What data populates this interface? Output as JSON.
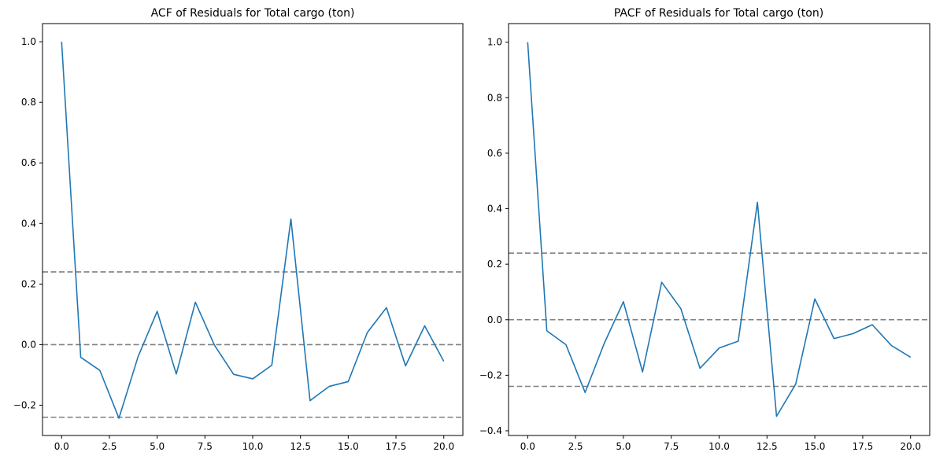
{
  "colors": {
    "series": "#1f77b4",
    "reference": "#808080",
    "axes": "#000000"
  },
  "chart_data": [
    {
      "type": "line",
      "title": "ACF of Residuals for Total cargo (ton)",
      "xlabel": "",
      "ylabel": "",
      "xlim": [
        -1.0,
        21.0
      ],
      "ylim": [
        -0.3,
        1.06
      ],
      "xticks": [
        0.0,
        2.5,
        5.0,
        7.5,
        10.0,
        12.5,
        15.0,
        17.5,
        20.0
      ],
      "xtick_labels": [
        "0.0",
        "2.5",
        "5.0",
        "7.5",
        "10.0",
        "12.5",
        "15.0",
        "17.5",
        "20.0"
      ],
      "yticks": [
        -0.2,
        0.0,
        0.2,
        0.4,
        0.6,
        0.8,
        1.0
      ],
      "ytick_labels": [
        "−0.2",
        "0.0",
        "0.2",
        "0.4",
        "0.6",
        "0.8",
        "1.0"
      ],
      "grid": false,
      "x": [
        0,
        1,
        2,
        3,
        4,
        5,
        6,
        7,
        8,
        9,
        10,
        11,
        12,
        13,
        14,
        15,
        16,
        17,
        18,
        19,
        20
      ],
      "values": [
        1.0,
        -0.042,
        -0.085,
        -0.243,
        -0.04,
        0.11,
        -0.097,
        0.14,
        -0.002,
        -0.098,
        -0.113,
        -0.068,
        0.415,
        -0.185,
        -0.138,
        -0.122,
        0.04,
        0.122,
        -0.07,
        0.062,
        -0.055
      ],
      "reference_lines": [
        0.24,
        0.0,
        -0.24
      ]
    },
    {
      "type": "line",
      "title": "PACF of Residuals for Total cargo (ton)",
      "xlabel": "",
      "ylabel": "",
      "xlim": [
        -1.0,
        21.0
      ],
      "ylim": [
        -0.417,
        1.067
      ],
      "xticks": [
        0.0,
        2.5,
        5.0,
        7.5,
        10.0,
        12.5,
        15.0,
        17.5,
        20.0
      ],
      "xtick_labels": [
        "0.0",
        "2.5",
        "5.0",
        "7.5",
        "10.0",
        "12.5",
        "15.0",
        "17.5",
        "20.0"
      ],
      "yticks": [
        -0.4,
        -0.2,
        0.0,
        0.2,
        0.4,
        0.6,
        0.8,
        1.0
      ],
      "ytick_labels": [
        "−0.4",
        "−0.2",
        "0.0",
        "0.2",
        "0.4",
        "0.6",
        "0.8",
        "1.0"
      ],
      "grid": false,
      "x": [
        0,
        1,
        2,
        3,
        4,
        5,
        6,
        7,
        8,
        9,
        10,
        11,
        12,
        13,
        14,
        15,
        16,
        17,
        18,
        19,
        20
      ],
      "values": [
        1.0,
        -0.04,
        -0.09,
        -0.262,
        -0.085,
        0.065,
        -0.188,
        0.135,
        0.04,
        -0.175,
        -0.102,
        -0.077,
        0.423,
        -0.348,
        -0.232,
        0.075,
        -0.068,
        -0.05,
        -0.018,
        -0.093,
        -0.135
      ],
      "reference_lines": [
        0.24,
        0.0,
        -0.24
      ]
    }
  ]
}
